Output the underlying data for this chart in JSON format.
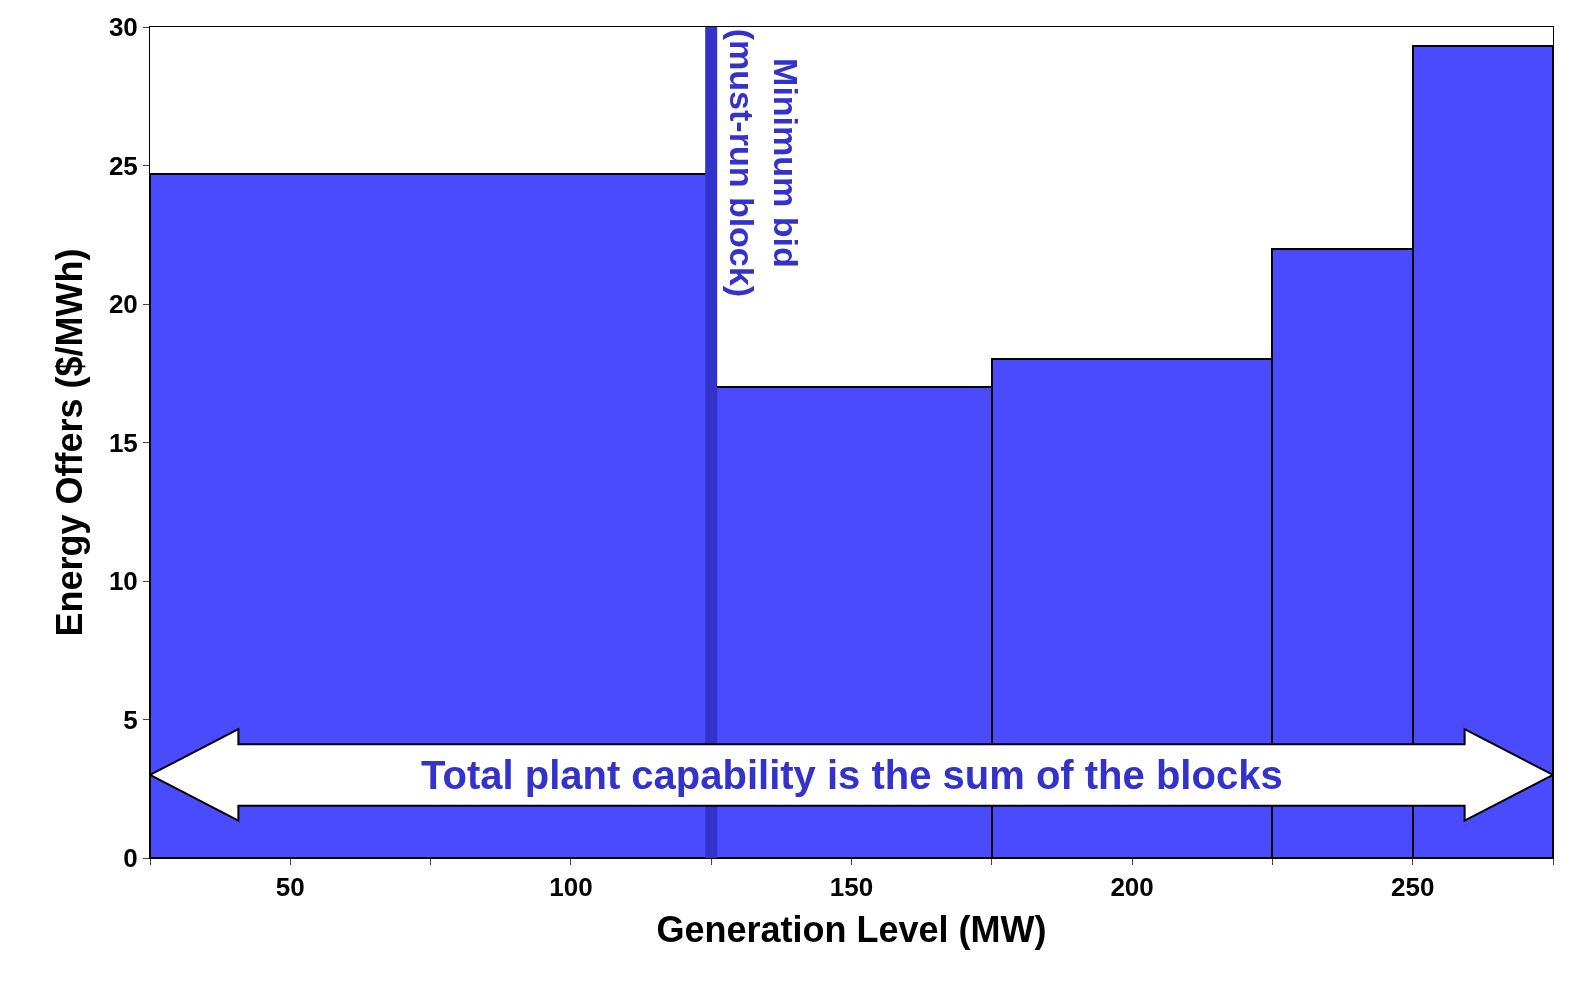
{
  "chart_data": {
    "type": "histogram",
    "xlabel": "Generation Level (MW)",
    "ylabel": "Energy Offers ($/MWh)",
    "bins": [
      25,
      125,
      175,
      225,
      250,
      275
    ],
    "values": [
      24.7,
      17,
      18,
      22,
      29.3
    ],
    "color": "#4a4aff",
    "xlim": [
      25,
      275
    ],
    "xticks": [
      {
        "value": 25,
        "label": null
      },
      50,
      {
        "value": 75,
        "label": null
      },
      100,
      {
        "value": 125,
        "label": null
      },
      150,
      {
        "value": 175,
        "label": null
      },
      200,
      {
        "value": 225,
        "label": null
      },
      250,
      {
        "value": 275,
        "label": null
      }
    ],
    "ylim": [
      0,
      30
    ],
    "yticks": [
      0,
      5,
      10,
      15,
      20,
      25,
      30
    ],
    "legend": false,
    "ref_lines": [
      {
        "axis": "x",
        "value": 125,
        "label": "Minimum bid\n(must-run block)",
        "color": "#3333cc"
      }
    ],
    "annotations": [
      "Total plant capability is the sum of the blocks"
    ]
  }
}
